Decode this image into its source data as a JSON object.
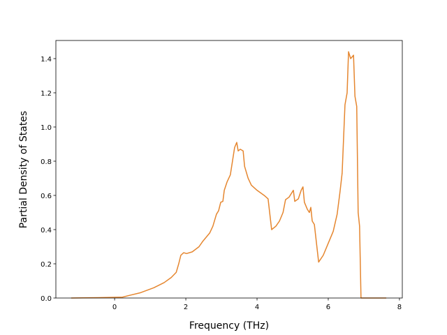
{
  "chart_data": {
    "type": "line",
    "xlabel": "Frequency (THz)",
    "ylabel": "Partial Density of States",
    "x": [
      -1.22,
      -0.47,
      0.22,
      0.41,
      0.71,
      1.1,
      1.39,
      1.59,
      1.73,
      1.8,
      1.86,
      1.94,
      2.02,
      2.18,
      2.37,
      2.47,
      2.67,
      2.76,
      2.86,
      2.92,
      2.98,
      3.04,
      3.08,
      3.16,
      3.25,
      3.31,
      3.37,
      3.43,
      3.47,
      3.53,
      3.61,
      3.65,
      3.75,
      3.84,
      4.0,
      4.2,
      4.31,
      4.41,
      4.53,
      4.63,
      4.73,
      4.8,
      4.9,
      5.02,
      5.06,
      5.16,
      5.24,
      5.29,
      5.33,
      5.41,
      5.47,
      5.51,
      5.55,
      5.61,
      5.73,
      5.86,
      6.0,
      6.14,
      6.25,
      6.33,
      6.39,
      6.47,
      6.53,
      6.57,
      6.63,
      6.71,
      6.75,
      6.8,
      6.84,
      6.88,
      6.92,
      7.18,
      7.63
    ],
    "values": [
      0,
      0.002,
      0.005,
      0.015,
      0.03,
      0.06,
      0.09,
      0.12,
      0.15,
      0.2,
      0.25,
      0.265,
      0.26,
      0.27,
      0.3,
      0.33,
      0.38,
      0.42,
      0.49,
      0.51,
      0.56,
      0.565,
      0.63,
      0.68,
      0.72,
      0.8,
      0.88,
      0.91,
      0.86,
      0.87,
      0.86,
      0.77,
      0.7,
      0.66,
      0.63,
      0.6,
      0.58,
      0.4,
      0.42,
      0.45,
      0.5,
      0.575,
      0.59,
      0.63,
      0.565,
      0.58,
      0.63,
      0.65,
      0.56,
      0.52,
      0.5,
      0.53,
      0.45,
      0.43,
      0.21,
      0.25,
      0.32,
      0.39,
      0.49,
      0.62,
      0.73,
      1.13,
      1.2,
      1.44,
      1.4,
      1.42,
      1.18,
      1.12,
      0.5,
      0.42,
      0,
      0,
      0
    ],
    "color": "#e5862f",
    "xlim": [
      -1.65,
      8.08
    ],
    "xticks": [
      0,
      2,
      4,
      6,
      8
    ],
    "ylim": [
      0,
      1.506
    ],
    "yticks": [
      {
        "value": 0,
        "label": "0.0"
      },
      0.2,
      0.4,
      0.6,
      0.8,
      {
        "value": 1,
        "label": "1.0"
      },
      1.2,
      1.4
    ],
    "grid": false
  }
}
